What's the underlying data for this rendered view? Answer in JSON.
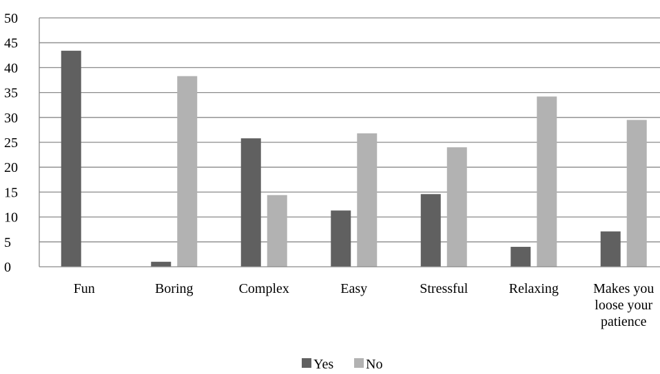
{
  "chart_data": {
    "type": "bar",
    "categories": [
      "Fun",
      "Boring",
      "Complex",
      "Easy",
      "Stressful",
      "Relaxing",
      "Makes you loose your patience"
    ],
    "category_label_lines": [
      [
        "Fun"
      ],
      [
        "Boring"
      ],
      [
        "Complex"
      ],
      [
        "Easy"
      ],
      [
        "Stressful"
      ],
      [
        "Relaxing"
      ],
      [
        "Makes you",
        "loose your",
        "patience"
      ]
    ],
    "series": [
      {
        "name": "Yes",
        "color": "#606060",
        "values": [
          43.4,
          1.0,
          25.8,
          11.3,
          14.6,
          4.0,
          7.1
        ]
      },
      {
        "name": "No",
        "color": "#b2b2b2",
        "values": [
          0,
          38.3,
          14.4,
          26.8,
          24.0,
          34.2,
          29.5
        ]
      }
    ],
    "yticks": [
      0,
      5,
      10,
      15,
      20,
      25,
      30,
      35,
      40,
      45,
      50
    ],
    "ylim": [
      0,
      50
    ],
    "title": "",
    "xlabel": "",
    "ylabel": "",
    "grid": true,
    "gridline_color": "#898989",
    "legend_position": "bottom"
  }
}
